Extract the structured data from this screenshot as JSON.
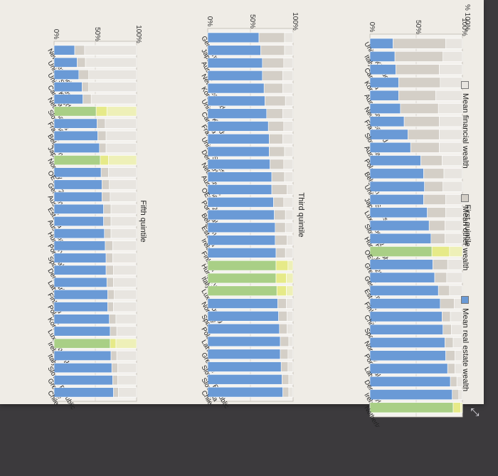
{
  "figure": {
    "legend": {
      "items": [
        {
          "label": "Mean financial wealth",
          "color": "#e8e5e0"
        },
        {
          "label": "Mean other wealth",
          "color": "#d4cfc7"
        },
        {
          "label": "Mean real estate wealth",
          "color": "#6a9ad6"
        }
      ]
    },
    "corner_axis_label": "% 100%",
    "highlight_colors": {
      "oecd": "#a9cf86",
      "oecd_light": "#e6ea88"
    },
    "expand_icon": "expand-icon"
  },
  "chart_data": [
    {
      "type": "bar",
      "stacked": true,
      "orientation": "horizontal",
      "title": "First quintile",
      "ylim": [
        0,
        100
      ],
      "ticks": [
        "0%",
        "50%",
        "100%"
      ],
      "grid": true,
      "categories": [
        "United Kingdom",
        "Italy",
        "Canada",
        "Korea",
        "Australia",
        "New Zealand",
        "France",
        "Slovenia",
        "Austria",
        "Poland",
        "Belgium",
        "United States",
        "Japan",
        "Luxembourg",
        "Slovak Republic",
        "Hungary",
        "OECD 28",
        "Greece",
        "Germany",
        "Estonia",
        "Finland",
        "Chile",
        "Spain",
        "Norway",
        "Portugal",
        "Latvia",
        "Denmark",
        "Ireland",
        "Netherlands"
      ],
      "series": [
        {
          "name": "Mean real estate wealth",
          "values": [
            25,
            27,
            28,
            31,
            31,
            33,
            37,
            41,
            44,
            55,
            58,
            59,
            58,
            62,
            64,
            66,
            67,
            68,
            70,
            74,
            76,
            78,
            79,
            81,
            82,
            84,
            87,
            89,
            90
          ]
        },
        {
          "name": "Mean other wealth",
          "values": [
            57,
            52,
            47,
            45,
            40,
            41,
            38,
            34,
            31,
            23,
            22,
            20,
            24,
            20,
            17,
            15,
            19,
            16,
            13,
            12,
            15,
            9,
            9,
            9,
            10,
            8,
            7,
            7,
            8
          ]
        },
        {
          "name": "Mean financial wealth",
          "values": [
            18,
            21,
            25,
            24,
            29,
            26,
            25,
            25,
            25,
            22,
            20,
            21,
            18,
            18,
            19,
            19,
            14,
            16,
            17,
            14,
            9,
            13,
            12,
            10,
            8,
            8,
            6,
            4,
            2
          ]
        }
      ],
      "highlight": [
        "OECD 28",
        "Netherlands"
      ]
    },
    {
      "type": "bar",
      "stacked": true,
      "orientation": "horizontal",
      "title": "Third quintile",
      "ylim": [
        0,
        100
      ],
      "ticks": [
        "0%",
        "50%",
        "100%"
      ],
      "grid": true,
      "categories": [
        "Germany",
        "Japan",
        "Austria",
        "New Zealand",
        "Korea",
        "United Kingdom",
        "Canada",
        "France",
        "United States",
        "Denmark",
        "Netherlands",
        "Australia",
        "OECD 28",
        "Portugal",
        "Belgium",
        "Estonia",
        "Ireland",
        "Finland",
        "Hungary",
        "Italy",
        "Luxembourg",
        "Norway",
        "Spain",
        "Poland",
        "Latvia",
        "Greece",
        "Slovak Republic",
        "Slovenia",
        "Chile"
      ],
      "series": [
        {
          "name": "Mean real estate wealth",
          "values": [
            60,
            62,
            64,
            64,
            66,
            67,
            69,
            71,
            72,
            72,
            73,
            75,
            75,
            77,
            78,
            79,
            79,
            80,
            80,
            80,
            81,
            82,
            83,
            84,
            85,
            85,
            86,
            87,
            88
          ]
        },
        {
          "name": "Mean other wealth",
          "values": [
            30,
            28,
            25,
            24,
            22,
            24,
            19,
            18,
            16,
            18,
            16,
            15,
            18,
            12,
            13,
            12,
            14,
            11,
            14,
            12,
            11,
            10,
            10,
            9,
            10,
            9,
            8,
            8,
            7
          ]
        },
        {
          "name": "Mean financial wealth",
          "values": [
            10,
            10,
            11,
            12,
            12,
            9,
            12,
            11,
            12,
            10,
            11,
            10,
            7,
            11,
            9,
            9,
            7,
            9,
            6,
            8,
            8,
            8,
            7,
            7,
            5,
            6,
            6,
            5,
            5
          ]
        }
      ],
      "highlight": [
        "Luxembourg",
        "Italy",
        "Hungary"
      ]
    },
    {
      "type": "bar",
      "stacked": true,
      "orientation": "horizontal",
      "title": "Fifth quintile",
      "ylim": [
        0,
        100
      ],
      "ticks": [
        "0%",
        "50%",
        "100%"
      ],
      "grid": true,
      "categories": [
        "New Zealand",
        "United States",
        "United Kingdom",
        "Canada",
        "Netherlands",
        "Slovenia",
        "France",
        "Belgium",
        "Japan",
        "Norway",
        "OECD 28",
        "Germany",
        "Austria",
        "Estonia",
        "Australia",
        "Hungary",
        "Portugal",
        "Spain",
        "Denmark",
        "Latvia",
        "Finland",
        "Poland",
        "Korea",
        "Luxembourg",
        "Ireland",
        "Italy",
        "Slovak Republic",
        "Greece",
        "Chile"
      ],
      "series": [
        {
          "name": "Mean real estate wealth",
          "values": [
            25,
            28,
            30,
            34,
            35,
            51,
            52,
            53,
            55,
            56,
            57,
            58,
            58,
            60,
            60,
            61,
            62,
            63,
            63,
            64,
            65,
            65,
            67,
            68,
            68,
            69,
            70,
            71,
            72
          ]
        },
        {
          "name": "Mean other wealth",
          "values": [
            12,
            10,
            12,
            8,
            10,
            13,
            10,
            10,
            8,
            10,
            9,
            9,
            10,
            9,
            9,
            8,
            9,
            8,
            9,
            8,
            8,
            7,
            8,
            8,
            7,
            7,
            7,
            6,
            6
          ]
        },
        {
          "name": "Mean financial wealth",
          "values": [
            63,
            62,
            58,
            58,
            55,
            36,
            38,
            37,
            37,
            34,
            34,
            33,
            32,
            31,
            31,
            31,
            29,
            29,
            28,
            28,
            27,
            28,
            25,
            24,
            25,
            24,
            23,
            23,
            22
          ]
        }
      ],
      "highlight": [
        "Slovenia",
        "Norway",
        "Ireland"
      ]
    }
  ]
}
